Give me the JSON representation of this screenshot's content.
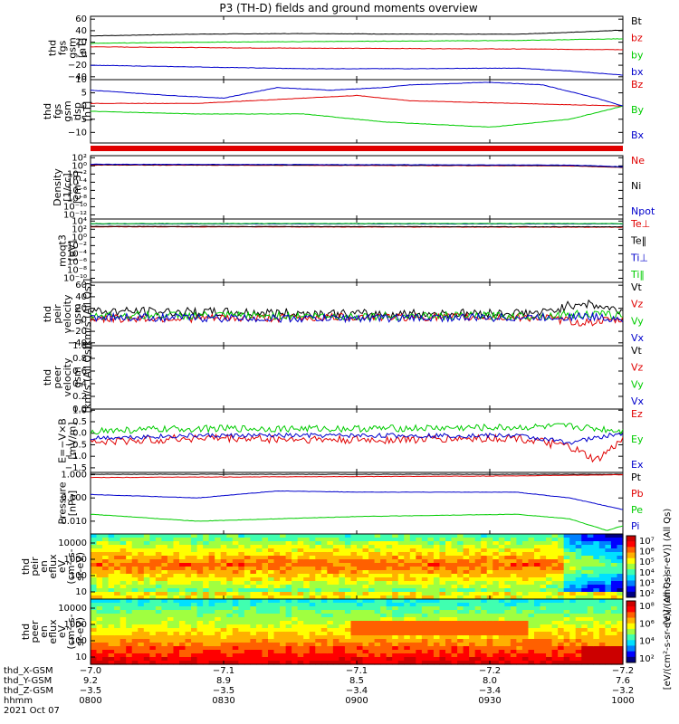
{
  "title": "P3 (TH-D) fields and ground moments overview",
  "colors": {
    "black": "#000000",
    "red": "#e00000",
    "green": "#00cc00",
    "blue": "#0000cc"
  },
  "chart_data": [
    {
      "id": "fgs",
      "type": "line",
      "ylabel": [
        "thd",
        "fgs",
        "gsm",
        "[nT]"
      ],
      "yticks": [
        [
          "60",
          "60"
        ],
        [
          "40",
          "40"
        ],
        [
          "20",
          "20"
        ],
        [
          "0",
          "0"
        ],
        [
          "-20",
          "−20"
        ],
        [
          "-40",
          "−40"
        ]
      ],
      "ylim": [
        -45,
        65
      ],
      "series": [
        {
          "name": "Bt",
          "color": "black",
          "x": [
            0,
            0.2,
            0.4,
            0.6,
            0.8,
            0.9,
            1
          ],
          "y": [
            31,
            34,
            35,
            34,
            34,
            37,
            41
          ]
        },
        {
          "name": "bz",
          "color": "red",
          "x": [
            0,
            0.3,
            0.6,
            0.85,
            1
          ],
          "y": [
            12,
            10,
            9,
            8,
            7
          ]
        },
        {
          "name": "by",
          "color": "green",
          "x": [
            0,
            0.2,
            0.4,
            0.6,
            0.8,
            1
          ],
          "y": [
            18,
            20,
            21,
            22,
            23,
            26
          ]
        },
        {
          "name": "bx",
          "color": "blue",
          "x": [
            0,
            0.2,
            0.4,
            0.6,
            0.8,
            0.9,
            1
          ],
          "y": [
            -20,
            -23,
            -26,
            -26,
            -25,
            -30,
            -37
          ]
        }
      ]
    },
    {
      "id": "fgs_gsm",
      "type": "line",
      "ylabel": [
        "thd",
        "fgs",
        "gsm",
        "dsp",
        "[nT]"
      ],
      "yticks": [
        [
          "10",
          "10"
        ],
        [
          "5",
          "5"
        ],
        [
          "0",
          "0"
        ],
        [
          "-5",
          "−5"
        ],
        [
          "-10",
          "−10"
        ]
      ],
      "ylim": [
        -14,
        10
      ],
      "series": [
        {
          "name": "Bz",
          "color": "red",
          "x": [
            0,
            0.2,
            0.4,
            0.5,
            0.6,
            0.8,
            1
          ],
          "y": [
            1,
            1,
            3,
            4,
            2,
            1,
            0
          ]
        },
        {
          "name": "By",
          "color": "green",
          "x": [
            0,
            0.2,
            0.4,
            0.55,
            0.75,
            0.9,
            1
          ],
          "y": [
            -2,
            -3,
            -3,
            -6,
            -8,
            -5,
            0
          ]
        },
        {
          "name": "Bx",
          "color": "blue",
          "x": [
            0,
            0.15,
            0.25,
            0.35,
            0.45,
            0.55,
            0.6,
            0.75,
            0.85,
            0.95,
            1
          ],
          "y": [
            6,
            4,
            3,
            7,
            6,
            7,
            8,
            9,
            8,
            3,
            0
          ]
        }
      ]
    },
    {
      "id": "density",
      "type": "line",
      "ylabel": [
        "Density",
        "[1/cc]",
        "[cm-3]"
      ],
      "yticks": [
        [
          "1e2",
          "10²"
        ],
        [
          "1e0",
          "10⁰"
        ],
        [
          "1e-2",
          "10⁻²"
        ],
        [
          "1e-4",
          "10⁻⁴"
        ],
        [
          "1e-6",
          "10⁻⁶"
        ],
        [
          "1e-8",
          "10⁻⁸"
        ],
        [
          "1e-10",
          "10⁻¹⁰"
        ],
        [
          "1e-12",
          "10⁻¹²"
        ]
      ],
      "log": true,
      "ylim": [
        -13,
        2.5
      ],
      "series": [
        {
          "name": "Ne",
          "color": "red",
          "x": [
            0,
            0.5,
            0.9,
            1
          ],
          "y": [
            0.2,
            0.1,
            0.0,
            -0.4
          ]
        },
        {
          "name": "Ni",
          "color": "black",
          "x": [
            0,
            0.5,
            0.9,
            1
          ],
          "y": [
            0.3,
            0.2,
            0.1,
            -0.3
          ]
        },
        {
          "name": "Npot",
          "color": "blue",
          "x": [
            0,
            0.5,
            0.9,
            1
          ],
          "y": [
            0.4,
            0.3,
            0.2,
            -0.2
          ]
        }
      ]
    },
    {
      "id": "temp",
      "type": "line",
      "ylabel": [
        "moqt3",
        "[eV]"
      ],
      "yticks": [
        [
          "1e4",
          "10⁴"
        ],
        [
          "1e2",
          "10²"
        ],
        [
          "1e0",
          "10⁰"
        ],
        [
          "1e-2",
          "10⁻²"
        ],
        [
          "1e-4",
          "10⁻⁴"
        ],
        [
          "1e-6",
          "10⁻⁶"
        ],
        [
          "1e-8",
          "10⁻⁸"
        ],
        [
          "1e-10",
          "10⁻¹⁰"
        ]
      ],
      "log": true,
      "ylim": [
        -11,
        4.5
      ],
      "series": [
        {
          "name": "Te⊥",
          "color": "red",
          "x": [
            0,
            1
          ],
          "y": [
            2.6,
            2.5
          ]
        },
        {
          "name": "Te‖",
          "color": "black",
          "x": [
            0,
            1
          ],
          "y": [
            2.7,
            2.6
          ]
        },
        {
          "name": "Ti⊥",
          "color": "blue",
          "x": [
            0,
            1
          ],
          "y": [
            3.3,
            3.3
          ]
        },
        {
          "name": "Ti‖",
          "color": "green",
          "x": [
            0,
            1
          ],
          "y": [
            3.4,
            3.4
          ]
        }
      ]
    },
    {
      "id": "peir_vel",
      "type": "line",
      "ylabel": [
        "thd",
        "peir",
        "velocity",
        "gsm",
        "[km/s (All Qs)]"
      ],
      "yticks": [
        [
          "60",
          "60"
        ],
        [
          "40",
          "40"
        ],
        [
          "20",
          "20"
        ],
        [
          "0",
          "0"
        ],
        [
          "-20",
          "−20"
        ],
        [
          "-40",
          "−40"
        ]
      ],
      "ylim": [
        -45,
        65
      ],
      "series": [
        {
          "name": "Vt",
          "color": "black",
          "x": [
            0,
            0.35,
            0.5,
            0.85,
            0.92,
            1
          ],
          "y": [
            15,
            12,
            10,
            12,
            30,
            15
          ],
          "noise": 8
        },
        {
          "name": "Vz",
          "color": "red",
          "x": [
            0,
            0.35,
            0.5,
            0.85,
            0.92,
            1
          ],
          "y": [
            2,
            3,
            5,
            4,
            -5,
            0
          ],
          "noise": 7
        },
        {
          "name": "Vy",
          "color": "green",
          "x": [
            0,
            0.35,
            0.5,
            0.85,
            0.92,
            1
          ],
          "y": [
            8,
            7,
            6,
            7,
            10,
            8
          ],
          "noise": 7
        },
        {
          "name": "Vx",
          "color": "blue",
          "x": [
            0,
            0.35,
            0.5,
            0.85,
            0.92,
            1
          ],
          "y": [
            5,
            2,
            3,
            4,
            6,
            2
          ],
          "noise": 7
        }
      ]
    },
    {
      "id": "peer_vel",
      "type": "line",
      "ylabel": [
        "thd",
        "peer",
        "velocity",
        "gsm",
        "[km/s (All Qs)]"
      ],
      "yticks": [
        [
          "1.0",
          "1.0"
        ],
        [
          "0.8",
          "0.8"
        ],
        [
          "0.6",
          "0.6"
        ],
        [
          "0.4",
          "0.4"
        ],
        [
          "0.2",
          "0.2"
        ],
        [
          "0.0",
          "0.0"
        ]
      ],
      "ylim": [
        0,
        1.0
      ],
      "series": [],
      "legend": [
        "Vt",
        "Vz",
        "Vy",
        "Vx"
      ]
    },
    {
      "id": "efield",
      "type": "line",
      "ylabel": [
        "E=−V×B",
        "[mV/m]"
      ],
      "yticks": [
        [
          "1.0",
          "1.0"
        ],
        [
          "0.5",
          "0.5"
        ],
        [
          "0.0",
          "0.0"
        ],
        [
          "-0.5",
          "−0.5"
        ],
        [
          "-1.0",
          "−1.0"
        ],
        [
          "-1.5",
          "−1.5"
        ]
      ],
      "ylim": [
        -1.7,
        1.05
      ],
      "series": [
        {
          "name": "Ez",
          "color": "red",
          "x": [
            0,
            0.2,
            0.5,
            0.8,
            0.9,
            0.95,
            1
          ],
          "y": [
            -0.4,
            -0.2,
            -0.3,
            -0.2,
            -0.6,
            -1.2,
            -0.3
          ],
          "noise": 0.18
        },
        {
          "name": "Ey",
          "color": "green",
          "x": [
            0,
            0.2,
            0.5,
            0.8,
            0.9,
            1
          ],
          "y": [
            0.1,
            0.2,
            0.2,
            0.25,
            0.3,
            0.1
          ],
          "noise": 0.15
        },
        {
          "name": "Ex",
          "color": "blue",
          "x": [
            0,
            0.2,
            0.5,
            0.8,
            0.9,
            1
          ],
          "y": [
            -0.2,
            -0.1,
            -0.1,
            -0.1,
            -0.4,
            0.0
          ],
          "noise": 0.1
        }
      ]
    },
    {
      "id": "pressure",
      "type": "line",
      "ylabel": [
        "Pressure",
        "[nPa]"
      ],
      "yticks": [
        [
          "1.000",
          "1.000"
        ],
        [
          "0.100",
          "0.100"
        ],
        [
          "0.010",
          "0.010"
        ]
      ],
      "log": true,
      "ylim": [
        -2.55,
        0.1
      ],
      "series": [
        {
          "name": "Pt",
          "color": "black",
          "x": [
            0,
            1
          ],
          "y": [
            0.02,
            0.02
          ]
        },
        {
          "name": "Pb",
          "color": "red",
          "x": [
            0,
            0.2,
            0.5,
            0.8,
            1
          ],
          "y": [
            -0.12,
            -0.1,
            -0.08,
            -0.05,
            0.0
          ]
        },
        {
          "name": "Pe",
          "color": "green",
          "x": [
            0,
            0.2,
            0.5,
            0.8,
            0.9,
            0.97,
            1
          ],
          "y": [
            -1.7,
            -2.0,
            -1.8,
            -1.7,
            -1.9,
            -2.4,
            -2.2
          ]
        },
        {
          "name": "Pi",
          "color": "blue",
          "x": [
            0,
            0.2,
            0.35,
            0.5,
            0.8,
            0.9,
            1
          ],
          "y": [
            -0.85,
            -1.0,
            -0.7,
            -0.75,
            -0.75,
            -1.0,
            -1.5
          ]
        }
      ]
    }
  ],
  "spectrograms": [
    {
      "id": "peir_en",
      "ylabel": [
        "thd",
        "peir",
        "en",
        "eflux",
        "eV",
        "(cm²-s-",
        "sr-eV)"
      ],
      "yticks": [
        "10000",
        "1000",
        "100",
        "10"
      ],
      "colorbar_label": "[eV/(cm²-s-sr-eV)] (All Qs)",
      "cb_ticks": [
        "10⁷",
        "10⁶",
        "10⁵",
        "10⁴",
        "10³",
        "10²"
      ]
    },
    {
      "id": "peer_en",
      "ylabel": [
        "thd",
        "peer",
        "en",
        "eflux",
        "eV",
        "(cm²-s-",
        "sr-eV)"
      ],
      "yticks": [
        "10000",
        "1000",
        "100",
        "10"
      ],
      "colorbar_label": "[eV/(cm²-s-sr-eV)] (All Qs)",
      "cb_ticks": [
        "10⁸",
        "10⁶",
        "10⁴",
        "10²"
      ]
    }
  ],
  "axis_rows": [
    {
      "label": "thd_X-GSM",
      "values": [
        "−7.0",
        "−7.1",
        "−7.1",
        "−7.2",
        "−7.2"
      ]
    },
    {
      "label": "thd_Y-GSM",
      "values": [
        "9.2",
        "8.9",
        "8.5",
        "8.0",
        "7.6"
      ]
    },
    {
      "label": "thd_Z-GSM",
      "values": [
        "−3.5",
        "−3.5",
        "−3.4",
        "−3.4",
        "−3.2"
      ]
    },
    {
      "label": "hhmm",
      "values": [
        "0800",
        "0830",
        "0900",
        "0930",
        "1000"
      ]
    }
  ],
  "date": "2021 Oct 07"
}
